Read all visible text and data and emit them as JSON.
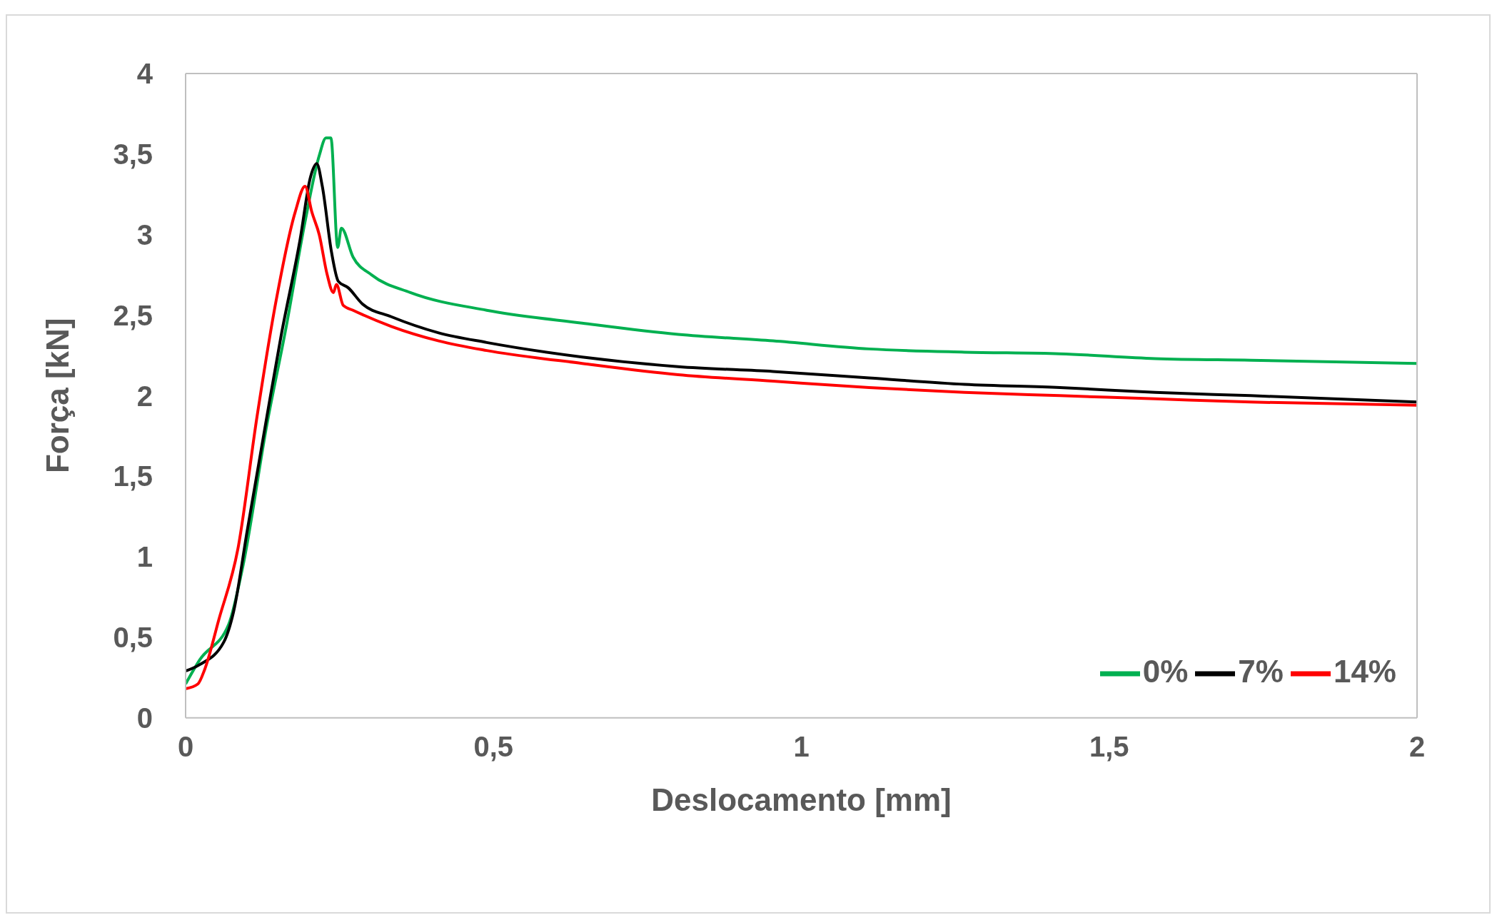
{
  "chart_data": {
    "type": "line",
    "xlabel": "Deslocamento [mm]",
    "ylabel": "Força [kN]",
    "xlim": [
      0,
      2
    ],
    "xticks": [
      0,
      {
        "value": 0.5,
        "label": "0,5"
      },
      1,
      {
        "value": 1.5,
        "label": "1,5"
      },
      2
    ],
    "ylim": [
      0,
      4
    ],
    "yticks": [
      0,
      {
        "value": 0.5,
        "label": "0,5"
      },
      1,
      {
        "value": 1.5,
        "label": "1,5"
      },
      2,
      {
        "value": 2.5,
        "label": "2,5"
      },
      3,
      {
        "value": 3.5,
        "label": "3,5"
      },
      4
    ],
    "grid": false,
    "legend": "bottom right",
    "marker": "none",
    "line_style": "solid",
    "series": [
      {
        "name": "0%",
        "color": "#00b050",
        "x": [
          0,
          0.023,
          0.07,
          0.093,
          0.132,
          0.163,
          0.194,
          0.217,
          0.228,
          0.236,
          0.247,
          0.253,
          0.272,
          0.302,
          0.365,
          0.489,
          0.644,
          0.8,
          0.954,
          1.11,
          1.265,
          1.42,
          1.575,
          1.73,
          2
        ],
        "values": [
          0.21,
          0.36,
          0.58,
          0.94,
          1.82,
          2.42,
          3.08,
          3.49,
          3.6,
          3.6,
          2.92,
          3.04,
          2.86,
          2.75,
          2.64,
          2.53,
          2.45,
          2.38,
          2.34,
          2.29,
          2.27,
          2.26,
          2.23,
          2.22,
          2.2
        ]
      },
      {
        "name": "7%",
        "color": "#000000",
        "x": [
          0,
          0.023,
          0.062,
          0.078,
          0.1,
          0.132,
          0.155,
          0.186,
          0.203,
          0.213,
          0.222,
          0.237,
          0.248,
          0.264,
          0.287,
          0.334,
          0.411,
          0.489,
          0.644,
          0.8,
          0.954,
          1.11,
          1.265,
          1.42,
          1.575,
          1.73,
          2
        ],
        "values": [
          0.29,
          0.33,
          0.47,
          0.66,
          1.16,
          1.87,
          2.37,
          2.97,
          3.36,
          3.44,
          3.3,
          2.89,
          2.71,
          2.67,
          2.57,
          2.49,
          2.39,
          2.33,
          2.24,
          2.18,
          2.15,
          2.11,
          2.07,
          2.05,
          2.02,
          2.0,
          1.96
        ]
      },
      {
        "name": "14%",
        "color": "#ff0000",
        "x": [
          0,
          0.02,
          0.031,
          0.054,
          0.085,
          0.116,
          0.147,
          0.178,
          0.194,
          0.205,
          0.217,
          0.23,
          0.24,
          0.245,
          0.256,
          0.272,
          0.334,
          0.411,
          0.489,
          0.644,
          0.8,
          0.954,
          1.11,
          1.265,
          1.42,
          1.575,
          1.73,
          2
        ],
        "values": [
          0.18,
          0.21,
          0.3,
          0.61,
          1.05,
          1.87,
          2.59,
          3.14,
          3.3,
          3.14,
          3.0,
          2.75,
          2.64,
          2.69,
          2.56,
          2.53,
          2.43,
          2.34,
          2.28,
          2.2,
          2.13,
          2.09,
          2.05,
          2.02,
          2.0,
          1.98,
          1.96,
          1.94
        ]
      }
    ]
  }
}
